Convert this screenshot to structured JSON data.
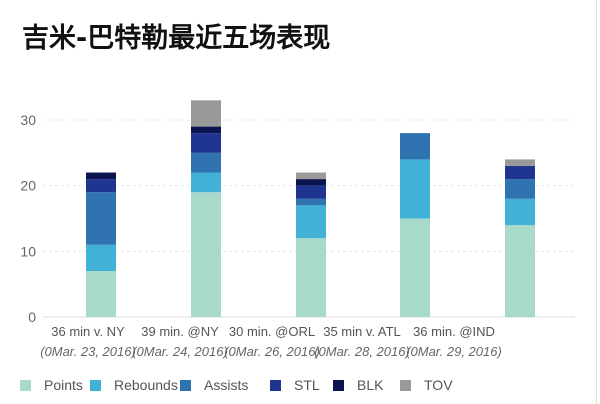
{
  "title": "吉米-巴特勒最近五场表现",
  "chart_data": {
    "type": "bar",
    "stacked": true,
    "title": "吉米-巴特勒最近五场表现",
    "categories": [
      {
        "label": "36 min v. NY",
        "date": "(0Mar. 23, 2016)"
      },
      {
        "label": "39 min. @NY",
        "date": "(0Mar. 24, 2016)"
      },
      {
        "label": "30 min. @ORL",
        "date": "(0Mar. 26, 2016)"
      },
      {
        "label": "35 min v. ATL",
        "date": "(0Mar. 28, 2016)"
      },
      {
        "label": "36 min. @IND",
        "date": "(0Mar. 29, 2016)"
      }
    ],
    "series": [
      {
        "name": "Points",
        "color": "#a8dacb",
        "values": [
          7,
          19,
          12,
          15,
          14
        ]
      },
      {
        "name": "Rebounds",
        "color": "#41b1d6",
        "values": [
          4,
          3,
          5,
          9,
          4
        ]
      },
      {
        "name": "Assists",
        "color": "#2f73b0",
        "values": [
          8,
          3,
          1,
          4,
          3
        ]
      },
      {
        "name": "STL",
        "color": "#1f3591",
        "values": [
          2,
          3,
          2,
          0,
          2
        ]
      },
      {
        "name": "BLK",
        "color": "#0c1450",
        "values": [
          1,
          1,
          1,
          0,
          0
        ]
      },
      {
        "name": "TOV",
        "color": "#999999",
        "values": [
          0,
          4,
          1,
          0,
          1
        ]
      }
    ],
    "yticks": [
      0,
      10,
      20,
      30
    ],
    "ylim": [
      0,
      30
    ],
    "grid": true,
    "legend": "bottom"
  }
}
